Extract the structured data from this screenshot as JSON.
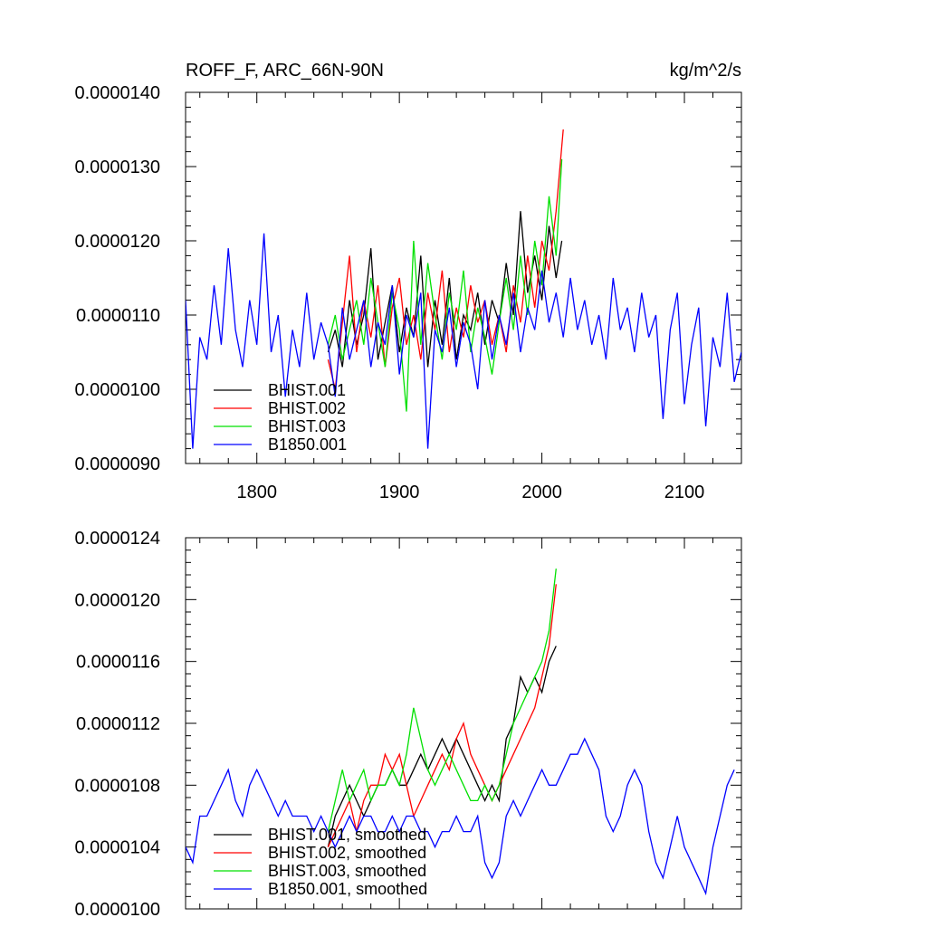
{
  "chart_data": [
    {
      "type": "line",
      "title": "ROFF_F, ARC_66N-90N",
      "units": "kg/m^2/s",
      "xlim": [
        1750,
        2140
      ],
      "ylim": [
        9e-06,
        1.4e-05
      ],
      "x_ticks": [
        1800,
        1900,
        2000,
        2100
      ],
      "x_tick_labels": [
        "1800",
        "1900",
        "2000",
        "2100"
      ],
      "y_ticks": [
        9e-06,
        1e-05,
        1.1e-05,
        1.2e-05,
        1.3e-05,
        1.4e-05
      ],
      "y_tick_labels": [
        "0.0000090",
        "0.0000100",
        "0.0000110",
        "0.0000120",
        "0.0000130",
        "0.0000140"
      ],
      "legend_position": "bottom-left",
      "series": [
        {
          "name": "BHIST.001",
          "color": "#000000",
          "x": [
            1850,
            1855,
            1860,
            1865,
            1870,
            1875,
            1880,
            1885,
            1890,
            1895,
            1900,
            1905,
            1910,
            1915,
            1920,
            1925,
            1930,
            1935,
            1940,
            1945,
            1950,
            1955,
            1960,
            1965,
            1970,
            1975,
            1980,
            1985,
            1990,
            1995,
            2000,
            2005,
            2010,
            2014
          ],
          "y": [
            1.05e-05,
            1.08e-05,
            1.03e-05,
            1.12e-05,
            1.06e-05,
            1.1e-05,
            1.19e-05,
            1.04e-05,
            1.09e-05,
            1.14e-05,
            1.05e-05,
            1.11e-05,
            1.07e-05,
            1.18e-05,
            1.03e-05,
            1.12e-05,
            1.06e-05,
            1.15e-05,
            1.04e-05,
            1.1e-05,
            1.08e-05,
            1.13e-05,
            1.06e-05,
            1.12e-05,
            1.09e-05,
            1.17e-05,
            1.1e-05,
            1.24e-05,
            1.13e-05,
            1.18e-05,
            1.12e-05,
            1.22e-05,
            1.15e-05,
            1.2e-05
          ]
        },
        {
          "name": "BHIST.002",
          "color": "#ff0000",
          "x": [
            1850,
            1855,
            1860,
            1865,
            1870,
            1875,
            1880,
            1885,
            1890,
            1895,
            1900,
            1905,
            1910,
            1915,
            1920,
            1925,
            1930,
            1935,
            1940,
            1945,
            1950,
            1955,
            1960,
            1965,
            1970,
            1975,
            1980,
            1985,
            1990,
            1995,
            2000,
            2005,
            2010,
            2015
          ],
          "y": [
            1.04e-05,
            1e-05,
            1.09e-05,
            1.18e-05,
            1.05e-05,
            1.12e-05,
            1.07e-05,
            1.14e-05,
            1.03e-05,
            1.11e-05,
            1.15e-05,
            1.06e-05,
            1.1e-05,
            1.04e-05,
            1.13e-05,
            1.08e-05,
            1.16e-05,
            1.05e-05,
            1.11e-05,
            1.07e-05,
            1.14e-05,
            1.09e-05,
            1.12e-05,
            1.06e-05,
            1.1e-05,
            1.05e-05,
            1.14e-05,
            1.09e-05,
            1.18e-05,
            1.11e-05,
            1.2e-05,
            1.16e-05,
            1.24e-05,
            1.35e-05
          ]
        },
        {
          "name": "BHIST.003",
          "color": "#00e000",
          "x": [
            1850,
            1855,
            1860,
            1865,
            1870,
            1875,
            1880,
            1885,
            1890,
            1895,
            1900,
            1905,
            1910,
            1915,
            1920,
            1925,
            1930,
            1935,
            1940,
            1945,
            1950,
            1955,
            1960,
            1965,
            1970,
            1975,
            1980,
            1985,
            1990,
            1995,
            2000,
            2005,
            2010,
            2014
          ],
          "y": [
            1.06e-05,
            1.1e-05,
            1.04e-05,
            1.08e-05,
            1.12e-05,
            1.06e-05,
            1.15e-05,
            1.09e-05,
            1.03e-05,
            1.13e-05,
            1.08e-05,
            9.7e-06,
            1.2e-05,
            1.06e-05,
            1.17e-05,
            1.1e-05,
            1.04e-05,
            1.13e-05,
            1.08e-05,
            1.16e-05,
            1.05e-05,
            1.11e-05,
            1.07e-05,
            1.02e-05,
            1.09e-05,
            1.15e-05,
            1.08e-05,
            1.18e-05,
            1.1e-05,
            1.2e-05,
            1.14e-05,
            1.26e-05,
            1.18e-05,
            1.31e-05
          ]
        },
        {
          "name": "B1850.001",
          "color": "#0000ff",
          "x": [
            1750,
            1755,
            1760,
            1765,
            1770,
            1775,
            1780,
            1785,
            1790,
            1795,
            1800,
            1805,
            1810,
            1815,
            1820,
            1825,
            1830,
            1835,
            1840,
            1845,
            1850,
            1855,
            1860,
            1865,
            1870,
            1875,
            1880,
            1885,
            1890,
            1895,
            1900,
            1905,
            1910,
            1915,
            1920,
            1925,
            1930,
            1935,
            1940,
            1945,
            1950,
            1955,
            1960,
            1965,
            1970,
            1975,
            1980,
            1985,
            1990,
            1995,
            2000,
            2005,
            2010,
            2015,
            2020,
            2025,
            2030,
            2035,
            2040,
            2045,
            2050,
            2055,
            2060,
            2065,
            2070,
            2075,
            2080,
            2085,
            2090,
            2095,
            2100,
            2105,
            2110,
            2115,
            2120,
            2125,
            2130,
            2135,
            2140
          ],
          "y": [
            1.12e-05,
            9.2e-06,
            1.07e-05,
            1.04e-05,
            1.14e-05,
            1.06e-05,
            1.19e-05,
            1.08e-05,
            1.03e-05,
            1.12e-05,
            1.06e-05,
            1.21e-05,
            1.05e-05,
            1.1e-05,
            9.9e-06,
            1.08e-05,
            1.03e-05,
            1.13e-05,
            1.04e-05,
            1.09e-05,
            1.06e-05,
            9.9e-06,
            1.11e-05,
            1.04e-05,
            1.08e-05,
            1.12e-05,
            1.03e-05,
            1.09e-05,
            1.06e-05,
            1.14e-05,
            1.02e-05,
            1.1e-05,
            1.07e-05,
            1.13e-05,
            9.2e-06,
            1.08e-05,
            1.05e-05,
            1.11e-05,
            1.03e-05,
            1.09e-05,
            1.06e-05,
            1e-05,
            1.12e-05,
            1.04e-05,
            1.1e-05,
            1.06e-05,
            1.13e-05,
            1.05e-05,
            1.11e-05,
            1.08e-05,
            1.16e-05,
            1.09e-05,
            1.13e-05,
            1.07e-05,
            1.15e-05,
            1.08e-05,
            1.12e-05,
            1.06e-05,
            1.1e-05,
            1.04e-05,
            1.15e-05,
            1.08e-05,
            1.11e-05,
            1.05e-05,
            1.13e-05,
            1.07e-05,
            1.1e-05,
            9.6e-06,
            1.08e-05,
            1.13e-05,
            9.8e-06,
            1.06e-05,
            1.11e-05,
            9.5e-06,
            1.07e-05,
            1.03e-05,
            1.13e-05,
            1.01e-05,
            1.05e-05
          ]
        }
      ]
    },
    {
      "type": "line",
      "title": "",
      "xlim": [
        1750,
        2140
      ],
      "ylim": [
        1e-05,
        1.24e-05
      ],
      "x_ticks": [
        1800,
        1900,
        2000,
        2100
      ],
      "y_ticks": [
        1e-05,
        1.04e-05,
        1.08e-05,
        1.12e-05,
        1.16e-05,
        1.2e-05,
        1.24e-05
      ],
      "y_tick_labels": [
        "0.0000100",
        "0.0000104",
        "0.0000108",
        "0.0000112",
        "0.0000116",
        "0.0000120",
        "0.0000124"
      ],
      "legend_position": "bottom-left",
      "series": [
        {
          "name": "BHIST.001, smoothed",
          "color": "#000000",
          "x": [
            1850,
            1855,
            1860,
            1865,
            1870,
            1875,
            1880,
            1885,
            1890,
            1895,
            1900,
            1905,
            1910,
            1915,
            1920,
            1925,
            1930,
            1935,
            1940,
            1945,
            1950,
            1955,
            1960,
            1965,
            1970,
            1975,
            1980,
            1985,
            1990,
            1995,
            2000,
            2005,
            2010
          ],
          "y": [
            1.04e-05,
            1.06e-05,
            1.07e-05,
            1.08e-05,
            1.07e-05,
            1.06e-05,
            1.07e-05,
            1.08e-05,
            1.08e-05,
            1.09e-05,
            1.08e-05,
            1.08e-05,
            1.09e-05,
            1.1e-05,
            1.09e-05,
            1.1e-05,
            1.11e-05,
            1.1e-05,
            1.11e-05,
            1.1e-05,
            1.09e-05,
            1.08e-05,
            1.07e-05,
            1.08e-05,
            1.07e-05,
            1.11e-05,
            1.12e-05,
            1.15e-05,
            1.14e-05,
            1.15e-05,
            1.14e-05,
            1.16e-05,
            1.17e-05
          ]
        },
        {
          "name": "BHIST.002, smoothed",
          "color": "#ff0000",
          "x": [
            1850,
            1855,
            1860,
            1865,
            1870,
            1875,
            1880,
            1885,
            1890,
            1895,
            1900,
            1905,
            1910,
            1915,
            1920,
            1925,
            1930,
            1935,
            1940,
            1945,
            1950,
            1955,
            1960,
            1965,
            1970,
            1975,
            1980,
            1985,
            1990,
            1995,
            2000,
            2005,
            2010
          ],
          "y": [
            1.04e-05,
            1.05e-05,
            1.06e-05,
            1.07e-05,
            1.05e-05,
            1.07e-05,
            1.08e-05,
            1.08e-05,
            1.1e-05,
            1.09e-05,
            1.1e-05,
            1.08e-05,
            1.06e-05,
            1.07e-05,
            1.08e-05,
            1.09e-05,
            1.1e-05,
            1.09e-05,
            1.11e-05,
            1.12e-05,
            1.1e-05,
            1.09e-05,
            1.08e-05,
            1.07e-05,
            1.08e-05,
            1.09e-05,
            1.1e-05,
            1.11e-05,
            1.12e-05,
            1.13e-05,
            1.15e-05,
            1.17e-05,
            1.21e-05
          ]
        },
        {
          "name": "BHIST.003, smoothed",
          "color": "#00e000",
          "x": [
            1850,
            1855,
            1860,
            1865,
            1870,
            1875,
            1880,
            1885,
            1890,
            1895,
            1900,
            1905,
            1910,
            1915,
            1920,
            1925,
            1930,
            1935,
            1940,
            1945,
            1950,
            1955,
            1960,
            1965,
            1970,
            1975,
            1980,
            1985,
            1990,
            1995,
            2000,
            2005,
            2010
          ],
          "y": [
            1.05e-05,
            1.07e-05,
            1.09e-05,
            1.07e-05,
            1.08e-05,
            1.09e-05,
            1.07e-05,
            1.08e-05,
            1.08e-05,
            1.09e-05,
            1.08e-05,
            1.1e-05,
            1.13e-05,
            1.11e-05,
            1.09e-05,
            1.08e-05,
            1.09e-05,
            1.1e-05,
            1.09e-05,
            1.08e-05,
            1.07e-05,
            1.07e-05,
            1.08e-05,
            1.07e-05,
            1.08e-05,
            1.1e-05,
            1.12e-05,
            1.13e-05,
            1.14e-05,
            1.15e-05,
            1.16e-05,
            1.18e-05,
            1.22e-05
          ]
        },
        {
          "name": "B1850.001, smoothed",
          "color": "#0000ff",
          "x": [
            1750,
            1755,
            1760,
            1765,
            1770,
            1775,
            1780,
            1785,
            1790,
            1795,
            1800,
            1805,
            1810,
            1815,
            1820,
            1825,
            1830,
            1835,
            1840,
            1845,
            1850,
            1855,
            1860,
            1865,
            1870,
            1875,
            1880,
            1885,
            1890,
            1895,
            1900,
            1905,
            1910,
            1915,
            1920,
            1925,
            1930,
            1935,
            1940,
            1945,
            1950,
            1955,
            1960,
            1965,
            1970,
            1975,
            1980,
            1985,
            1990,
            1995,
            2000,
            2005,
            2010,
            2015,
            2020,
            2025,
            2030,
            2035,
            2040,
            2045,
            2050,
            2055,
            2060,
            2065,
            2070,
            2075,
            2080,
            2085,
            2090,
            2095,
            2100,
            2105,
            2110,
            2115,
            2120,
            2125,
            2130,
            2135
          ],
          "y": [
            1.04e-05,
            1.03e-05,
            1.06e-05,
            1.06e-05,
            1.07e-05,
            1.08e-05,
            1.09e-05,
            1.07e-05,
            1.06e-05,
            1.08e-05,
            1.09e-05,
            1.08e-05,
            1.07e-05,
            1.06e-05,
            1.07e-05,
            1.06e-05,
            1.06e-05,
            1.06e-05,
            1.05e-05,
            1.06e-05,
            1.05e-05,
            1.04e-05,
            1.05e-05,
            1.06e-05,
            1.05e-05,
            1.06e-05,
            1.06e-05,
            1.05e-05,
            1.05e-05,
            1.06e-05,
            1.05e-05,
            1.06e-05,
            1.06e-05,
            1.05e-05,
            1.05e-05,
            1.04e-05,
            1.05e-05,
            1.05e-05,
            1.06e-05,
            1.05e-05,
            1.05e-05,
            1.06e-05,
            1.03e-05,
            1.02e-05,
            1.03e-05,
            1.06e-05,
            1.07e-05,
            1.06e-05,
            1.07e-05,
            1.08e-05,
            1.09e-05,
            1.08e-05,
            1.08e-05,
            1.09e-05,
            1.1e-05,
            1.1e-05,
            1.11e-05,
            1.1e-05,
            1.09e-05,
            1.06e-05,
            1.05e-05,
            1.06e-05,
            1.08e-05,
            1.09e-05,
            1.08e-05,
            1.05e-05,
            1.03e-05,
            1.02e-05,
            1.04e-05,
            1.06e-05,
            1.04e-05,
            1.03e-05,
            1.02e-05,
            1.01e-05,
            1.04e-05,
            1.06e-05,
            1.08e-05,
            1.09e-05
          ]
        }
      ]
    }
  ]
}
